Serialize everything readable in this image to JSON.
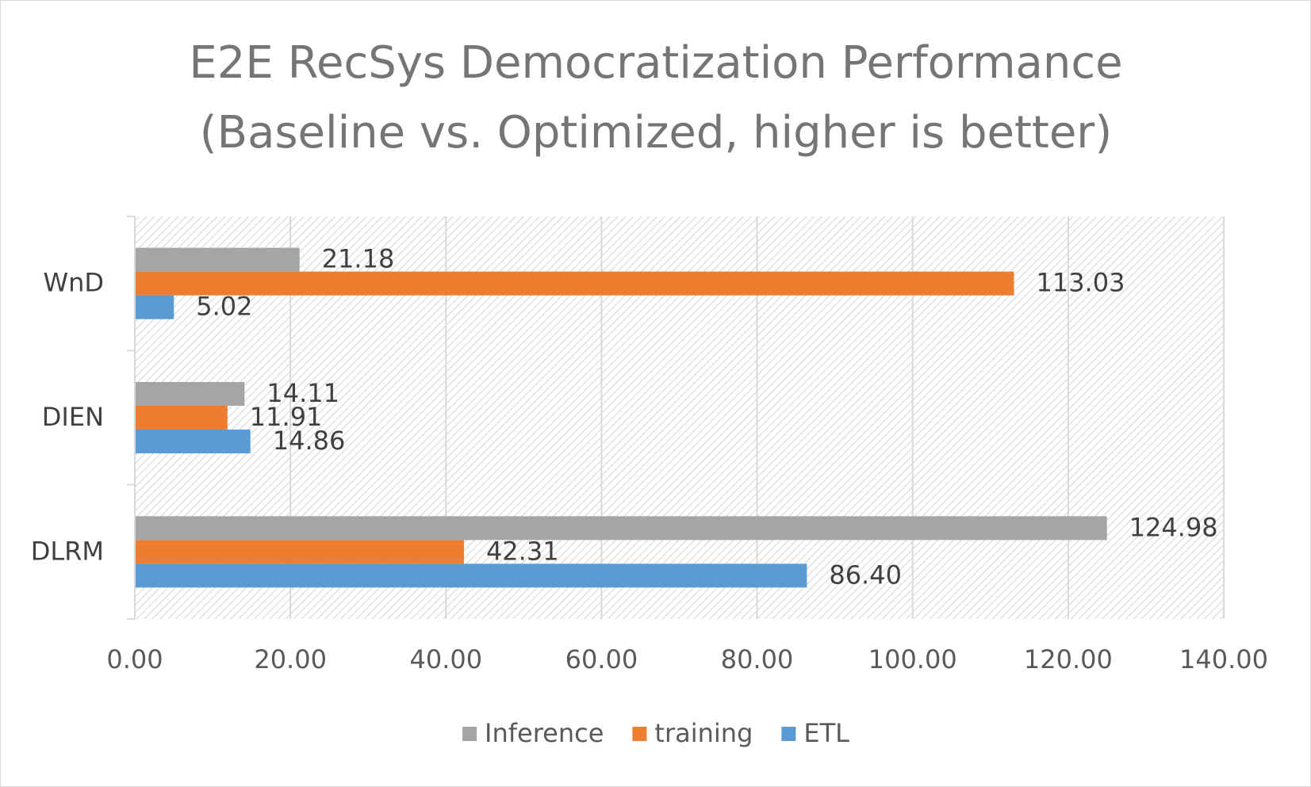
{
  "chart_data": {
    "type": "bar",
    "orientation": "horizontal",
    "title": "E2E RecSys Democratization Performance\n(Baseline vs. Optimized, higher is better)",
    "title_lines": [
      "E2E RecSys Democratization Performance",
      "(Baseline vs. Optimized, higher is better)"
    ],
    "categories": [
      "WnD",
      "DIEN",
      "DLRM"
    ],
    "series": [
      {
        "name": "Inference",
        "color": "#a5a5a5",
        "values": [
          21.18,
          14.11,
          124.98
        ],
        "labels": [
          "21.18",
          "14.11",
          "124.98"
        ]
      },
      {
        "name": "training",
        "color": "#ed7d31",
        "values": [
          113.03,
          11.91,
          42.31
        ],
        "labels": [
          "113.03",
          "11.91",
          "42.31"
        ]
      },
      {
        "name": "ETL",
        "color": "#5b9bd5",
        "values": [
          5.02,
          14.86,
          86.4
        ],
        "labels": [
          "5.02",
          "14.86",
          "86.40"
        ]
      }
    ],
    "xlim": [
      0,
      140
    ],
    "x_ticks": [
      "0.00",
      "20.00",
      "40.00",
      "60.00",
      "80.00",
      "100.00",
      "120.00",
      "140.00"
    ],
    "xlabel": "",
    "ylabel": "",
    "grid": true,
    "plot_background": "hatched",
    "legend_position": "bottom"
  }
}
